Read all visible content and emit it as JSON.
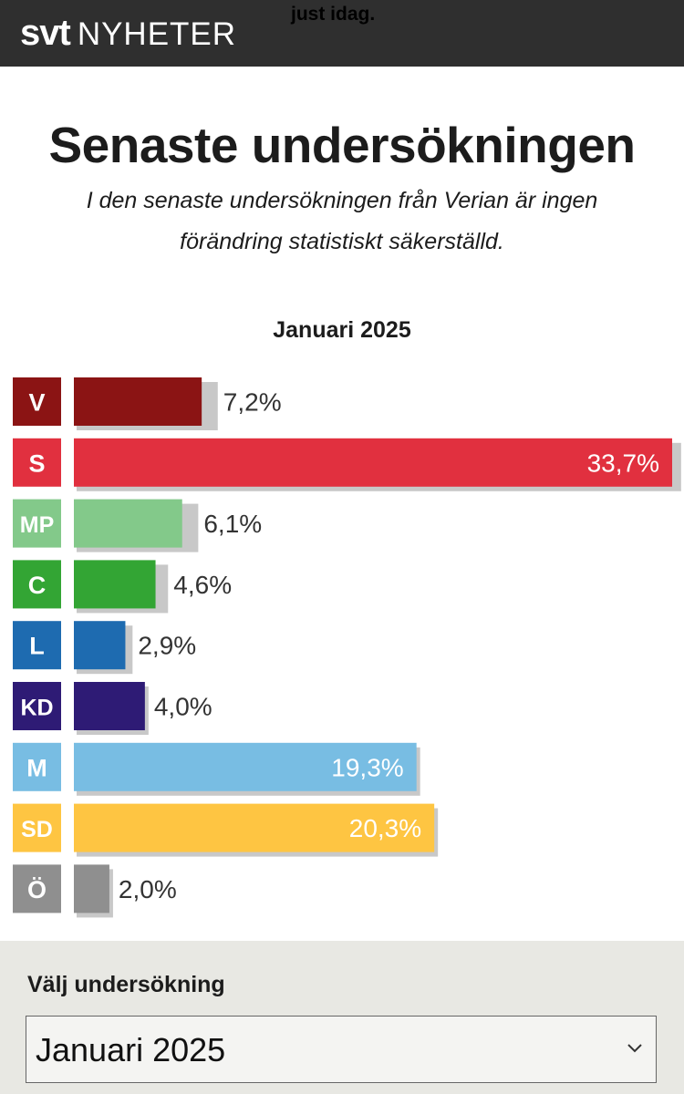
{
  "header": {
    "logo_svt": "svt",
    "logo_nyheter": "NYHETER",
    "overlay_text": "just idag."
  },
  "title": "Senaste undersökningen",
  "subtitle": "I den senaste undersökningen från Verian är ingen förändring statistiskt säkerställd.",
  "period": "Januari 2025",
  "chart_data": {
    "type": "bar",
    "orientation": "horizontal",
    "title": "Januari 2025",
    "unit": "%",
    "categories": [
      "V",
      "S",
      "MP",
      "C",
      "L",
      "KD",
      "M",
      "SD",
      "Ö"
    ],
    "values": [
      7.2,
      33.7,
      6.1,
      4.6,
      2.9,
      4.0,
      19.3,
      20.3,
      2.0
    ],
    "value_labels": [
      "7,2%",
      "33,7%",
      "6,1%",
      "4,6%",
      "2,9%",
      "4,0%",
      "19,3%",
      "20,3%",
      "2,0%"
    ],
    "colors": [
      "#8b1414",
      "#e1303f",
      "#83c98a",
      "#33a534",
      "#1e6bb0",
      "#2e1b75",
      "#78bde3",
      "#fec542",
      "#8f8f8f"
    ],
    "previous_values": [
      7.9,
      34.0,
      6.8,
      5.1,
      3.1,
      4.0,
      19.3,
      20.3,
      2.0
    ],
    "previous_color": "#c8c8c8",
    "xlim": [
      0,
      33.7
    ],
    "grid": false,
    "legend": "none"
  },
  "selector": {
    "label": "Välj undersökning",
    "value": "Januari 2025"
  }
}
